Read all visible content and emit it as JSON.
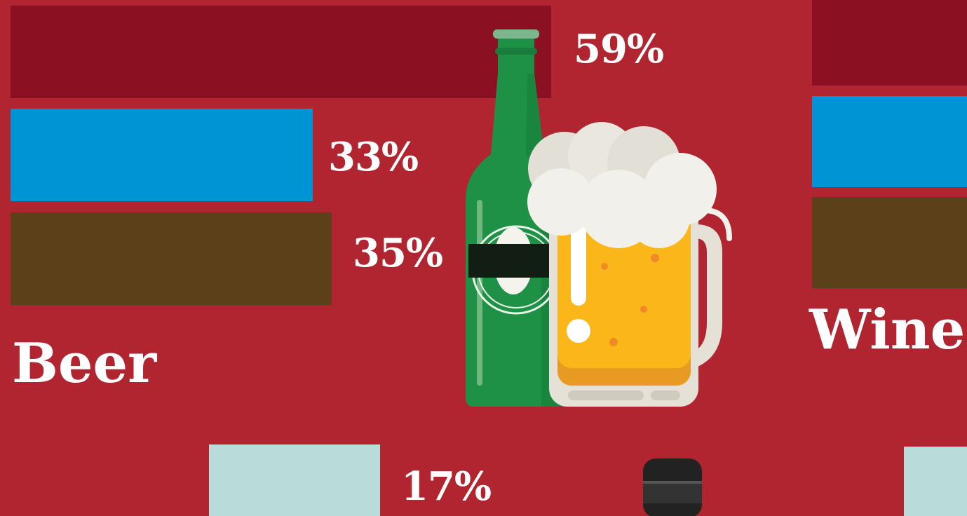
{
  "palette": {
    "background": "#b0252f",
    "series_colors": [
      "#8b1122",
      "#0094d4",
      "#5c401a"
    ],
    "spirits_color": "#b9dcdb"
  },
  "chart_data": [
    {
      "type": "bar",
      "orientation": "horizontal",
      "category": "Beer",
      "values": [
        59,
        33,
        35
      ],
      "value_labels": [
        "59%",
        "33%",
        "35%"
      ],
      "xlim": [
        0,
        100
      ],
      "colors": [
        "#8b1122",
        "#0094d4",
        "#5c401a"
      ]
    },
    {
      "type": "bar",
      "orientation": "horizontal",
      "category": "Wine",
      "value_labels_visible": false,
      "colors": [
        "#8b1122",
        "#0094d4",
        "#5c401a"
      ]
    },
    {
      "type": "bar",
      "orientation": "horizontal",
      "category": "",
      "values": [
        17
      ],
      "value_labels": [
        "17%"
      ],
      "colors": [
        "#b9dcdb"
      ]
    }
  ],
  "illustrations": {
    "beer": [
      "beer-bottle-icon",
      "beer-mug-icon"
    ],
    "spirits": [
      "wine-bottle-icon"
    ]
  }
}
